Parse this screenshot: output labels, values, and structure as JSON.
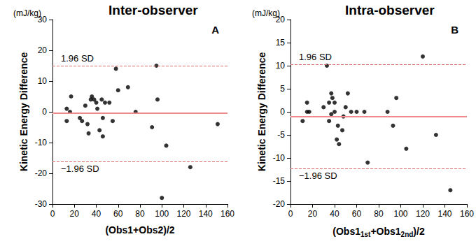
{
  "chart_data": [
    {
      "type": "scatter",
      "title": "Inter-observer",
      "panel": "A",
      "unit": "(mJ/kg)",
      "y_label": "Kinetic Energy Difference",
      "x_label": [
        {
          "text": "(Obs1+Obs2)/2",
          "sub": false
        }
      ],
      "x": [
        13,
        13,
        16,
        17,
        25,
        27,
        30,
        32,
        33,
        35,
        36,
        38,
        40,
        41,
        43,
        45,
        46,
        46,
        48,
        52,
        55,
        58,
        60,
        69,
        76,
        91,
        95,
        96,
        100,
        104,
        126,
        151
      ],
      "values": [
        1,
        -3,
        0,
        5,
        -2,
        -3,
        2,
        -4,
        -7,
        4,
        5,
        4,
        3,
        1,
        -6,
        4,
        -2,
        -8,
        3,
        3,
        -3,
        14,
        7,
        8,
        0,
        -5,
        15,
        4,
        -28,
        -11,
        -18,
        -4
      ],
      "color": "#000000",
      "xlim": [
        0,
        160
      ],
      "xticks": [
        0,
        20,
        40,
        60,
        80,
        100,
        120,
        140,
        160
      ],
      "ylim": [
        -30,
        30
      ],
      "yticks": [
        -30,
        -20,
        -10,
        0,
        10,
        20,
        30
      ],
      "mean": -0.5,
      "upper_loa": 15,
      "lower_loa": -16.2,
      "upper_label": "1.96 SD",
      "lower_label": "−1.96 SD",
      "grid": false
    },
    {
      "type": "scatter",
      "title": "Intra-observer",
      "panel": "B",
      "unit": "(mJ/kg)",
      "y_label": "Kinetic Energy Difference",
      "x_label": [
        {
          "text": "(Obs1",
          "sub": false
        },
        {
          "text": "1st",
          "sub": true
        },
        {
          "text": "+Obs1",
          "sub": false
        },
        {
          "text": "2nd",
          "sub": true
        },
        {
          "text": ")/2",
          "sub": false
        }
      ],
      "x": [
        11,
        15,
        15,
        17,
        30,
        33,
        35,
        35,
        37,
        37,
        38,
        40,
        40,
        42,
        43,
        44,
        47,
        48,
        50,
        52,
        55,
        60,
        67,
        70,
        88,
        93,
        96,
        105,
        120,
        132,
        145
      ],
      "values": [
        -2,
        0,
        2,
        0,
        1,
        10,
        -2,
        2,
        -0.5,
        4,
        3,
        2,
        0,
        -6,
        -3,
        -7,
        -4,
        -1,
        1,
        4,
        0,
        0,
        0,
        -11,
        0,
        -3,
        3,
        -8,
        12,
        -5,
        -17
      ],
      "color": "#000000",
      "xlim": [
        0,
        160
      ],
      "xticks": [
        0,
        20,
        40,
        60,
        80,
        100,
        120,
        140,
        160
      ],
      "ylim": [
        -20,
        20
      ],
      "yticks": [
        -20,
        -15,
        -10,
        -5,
        0,
        5,
        10,
        15,
        20
      ],
      "mean": -1,
      "upper_loa": 10.3,
      "lower_loa": -12.3,
      "upper_label": "1.96 SD",
      "lower_label": "−1.96 SD",
      "grid": false
    }
  ]
}
